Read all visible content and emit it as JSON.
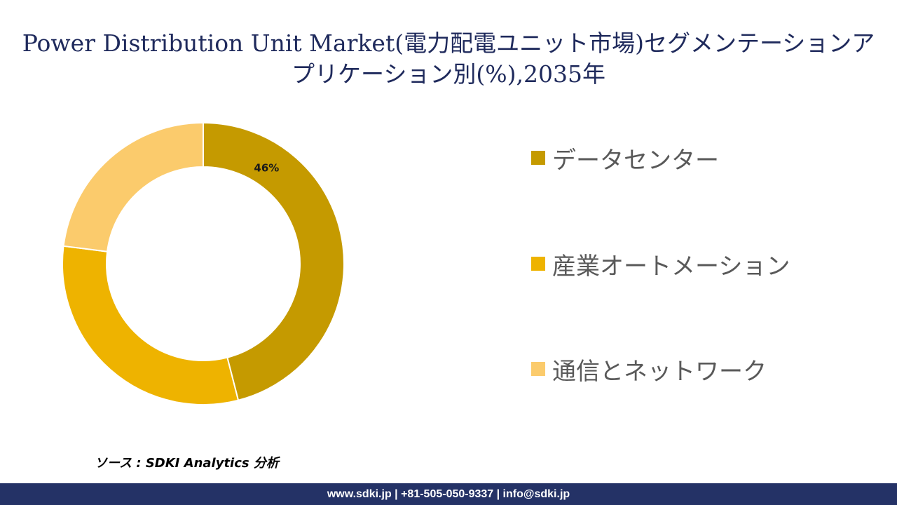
{
  "title": "Power Distribution Unit Market(電力配電ユニット市場)セグメンテーションアプリケーション別(%),2035年",
  "chart_data": {
    "type": "pie",
    "style": "donut",
    "categories": [
      "データセンター",
      "産業オートメーション",
      "通信とネットワーク"
    ],
    "values": [
      46,
      31,
      23
    ],
    "data_labels": [
      "46%",
      "",
      ""
    ],
    "colors": [
      "#c59a00",
      "#eeb300",
      "#fbcb6c"
    ],
    "legend_position": "right"
  },
  "legend": {
    "items": [
      {
        "label": "データセンター",
        "color": "#c59a00"
      },
      {
        "label": "産業オートメーション",
        "color": "#eeb300"
      },
      {
        "label": "通信とネットワーク",
        "color": "#fbcb6c"
      }
    ]
  },
  "source": "ソース : SDKI Analytics 分析",
  "footer": "www.sdki.jp | +81-505-050-9337 | info@sdki.jp"
}
